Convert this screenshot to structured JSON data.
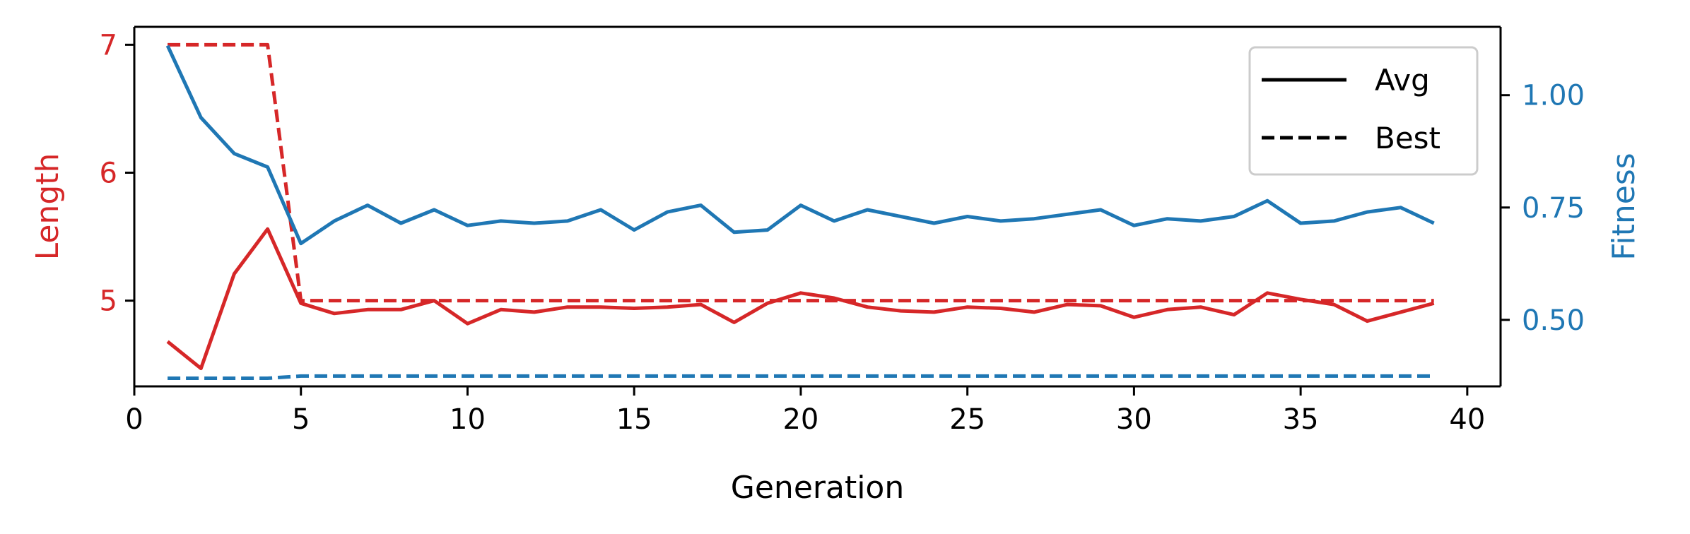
{
  "chart_data": {
    "type": "line",
    "xlabel": "Generation",
    "ylabel_left": "Length",
    "ylabel_right": "Fitness",
    "xlim": [
      0,
      41
    ],
    "ylim_left": [
      4.33,
      7.14
    ],
    "ylim_right": [
      0.352,
      1.152
    ],
    "x_ticks": [
      0,
      5,
      10,
      15,
      20,
      25,
      30,
      35,
      40
    ],
    "y_left_ticks": [
      5,
      6,
      7
    ],
    "y_right_ticks": [
      "0.50",
      "0.75",
      "1.00"
    ],
    "colors": {
      "length": "#d62728",
      "fitness": "#1f77b4",
      "axes": "#000000"
    },
    "legend": {
      "position": "top-right",
      "entries": [
        {
          "label": "Avg",
          "style": "solid"
        },
        {
          "label": "Best",
          "style": "dashed"
        }
      ]
    },
    "x": [
      1,
      2,
      3,
      4,
      5,
      6,
      7,
      8,
      9,
      10,
      11,
      12,
      13,
      14,
      15,
      16,
      17,
      18,
      19,
      20,
      21,
      22,
      23,
      24,
      25,
      26,
      27,
      28,
      29,
      30,
      31,
      32,
      33,
      34,
      35,
      36,
      37,
      38,
      39
    ],
    "series": [
      {
        "axis": "left",
        "metric": "Length",
        "style": "solid",
        "values": [
          4.68,
          4.47,
          5.21,
          5.56,
          4.98,
          4.9,
          4.93,
          4.93,
          5.0,
          4.82,
          4.93,
          4.91,
          4.95,
          4.95,
          4.94,
          4.95,
          4.97,
          4.83,
          4.98,
          5.06,
          5.02,
          4.95,
          4.92,
          4.91,
          4.95,
          4.94,
          4.91,
          4.97,
          4.96,
          4.87,
          4.93,
          4.95,
          4.89,
          5.06,
          5.01,
          4.97,
          4.84,
          4.91,
          4.98
        ]
      },
      {
        "axis": "left",
        "metric": "Length",
        "style": "dashed",
        "values": [
          7,
          7,
          7,
          7,
          5,
          5,
          5,
          5,
          5,
          5,
          5,
          5,
          5,
          5,
          5,
          5,
          5,
          5,
          5,
          5,
          5,
          5,
          5,
          5,
          5,
          5,
          5,
          5,
          5,
          5,
          5,
          5,
          5,
          5,
          5,
          5,
          5,
          5,
          5
        ]
      },
      {
        "axis": "right",
        "metric": "Fitness",
        "style": "solid",
        "values": [
          1.11,
          0.95,
          0.87,
          0.84,
          0.67,
          0.72,
          0.755,
          0.715,
          0.745,
          0.71,
          0.72,
          0.715,
          0.72,
          0.745,
          0.7,
          0.74,
          0.755,
          0.695,
          0.7,
          0.755,
          0.72,
          0.745,
          0.73,
          0.715,
          0.73,
          0.72,
          0.725,
          0.735,
          0.745,
          0.71,
          0.725,
          0.72,
          0.73,
          0.765,
          0.715,
          0.72,
          0.74,
          0.75,
          0.715
        ]
      },
      {
        "axis": "right",
        "metric": "Fitness",
        "style": "dashed",
        "values": [
          0.37,
          0.37,
          0.37,
          0.37,
          0.375,
          0.375,
          0.375,
          0.375,
          0.375,
          0.375,
          0.375,
          0.375,
          0.375,
          0.375,
          0.375,
          0.375,
          0.375,
          0.375,
          0.375,
          0.375,
          0.375,
          0.375,
          0.375,
          0.375,
          0.375,
          0.375,
          0.375,
          0.375,
          0.375,
          0.375,
          0.375,
          0.375,
          0.375,
          0.375,
          0.375,
          0.375,
          0.375,
          0.375,
          0.375
        ]
      }
    ]
  }
}
